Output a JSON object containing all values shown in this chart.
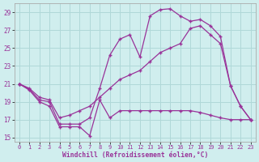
{
  "xlabel": "Windchill (Refroidissement éolien,°C)",
  "background_color": "#d0eeee",
  "grid_color": "#b0d8d8",
  "line_color": "#993399",
  "xlim": [
    -0.5,
    23.5
  ],
  "ylim": [
    14.5,
    30.0
  ],
  "yticks": [
    15,
    17,
    19,
    21,
    23,
    25,
    27,
    29
  ],
  "xticks": [
    0,
    1,
    2,
    3,
    4,
    5,
    6,
    7,
    8,
    9,
    10,
    11,
    12,
    13,
    14,
    15,
    16,
    17,
    18,
    19,
    20,
    21,
    22,
    23
  ],
  "line1_x": [
    0,
    1,
    2,
    3,
    4,
    5,
    6,
    7,
    8,
    9,
    10,
    11,
    12,
    13,
    14,
    15,
    16,
    17,
    18,
    19,
    20,
    21,
    22,
    23
  ],
  "line1_y": [
    21.0,
    20.3,
    19.0,
    18.5,
    16.2,
    16.2,
    16.2,
    15.2,
    19.2,
    17.2,
    18.0,
    18.0,
    18.0,
    18.0,
    18.0,
    18.0,
    18.0,
    18.0,
    17.8,
    17.5,
    17.2,
    17.0,
    17.0,
    17.0
  ],
  "line2_x": [
    0,
    1,
    2,
    3,
    4,
    5,
    6,
    7,
    8,
    9,
    10,
    11,
    12,
    13,
    14,
    15,
    16,
    17,
    18,
    19,
    20,
    21,
    22,
    23
  ],
  "line2_y": [
    21.0,
    20.4,
    19.2,
    19.0,
    16.5,
    16.5,
    16.5,
    17.2,
    20.5,
    24.2,
    26.0,
    26.5,
    24.0,
    28.6,
    29.3,
    29.4,
    28.6,
    28.0,
    28.2,
    27.5,
    26.3,
    20.8,
    18.5,
    17.0
  ],
  "line3_x": [
    0,
    1,
    2,
    3,
    4,
    5,
    6,
    7,
    8,
    9,
    10,
    11,
    12,
    13,
    14,
    15,
    16,
    17,
    18,
    19,
    20,
    21,
    22,
    23
  ],
  "line3_y": [
    21.0,
    20.5,
    19.5,
    19.2,
    17.2,
    17.5,
    18.0,
    18.5,
    19.5,
    20.5,
    21.5,
    22.0,
    22.5,
    23.5,
    24.5,
    25.0,
    25.5,
    27.2,
    27.5,
    26.5,
    25.5,
    20.8,
    18.5,
    17.0
  ]
}
